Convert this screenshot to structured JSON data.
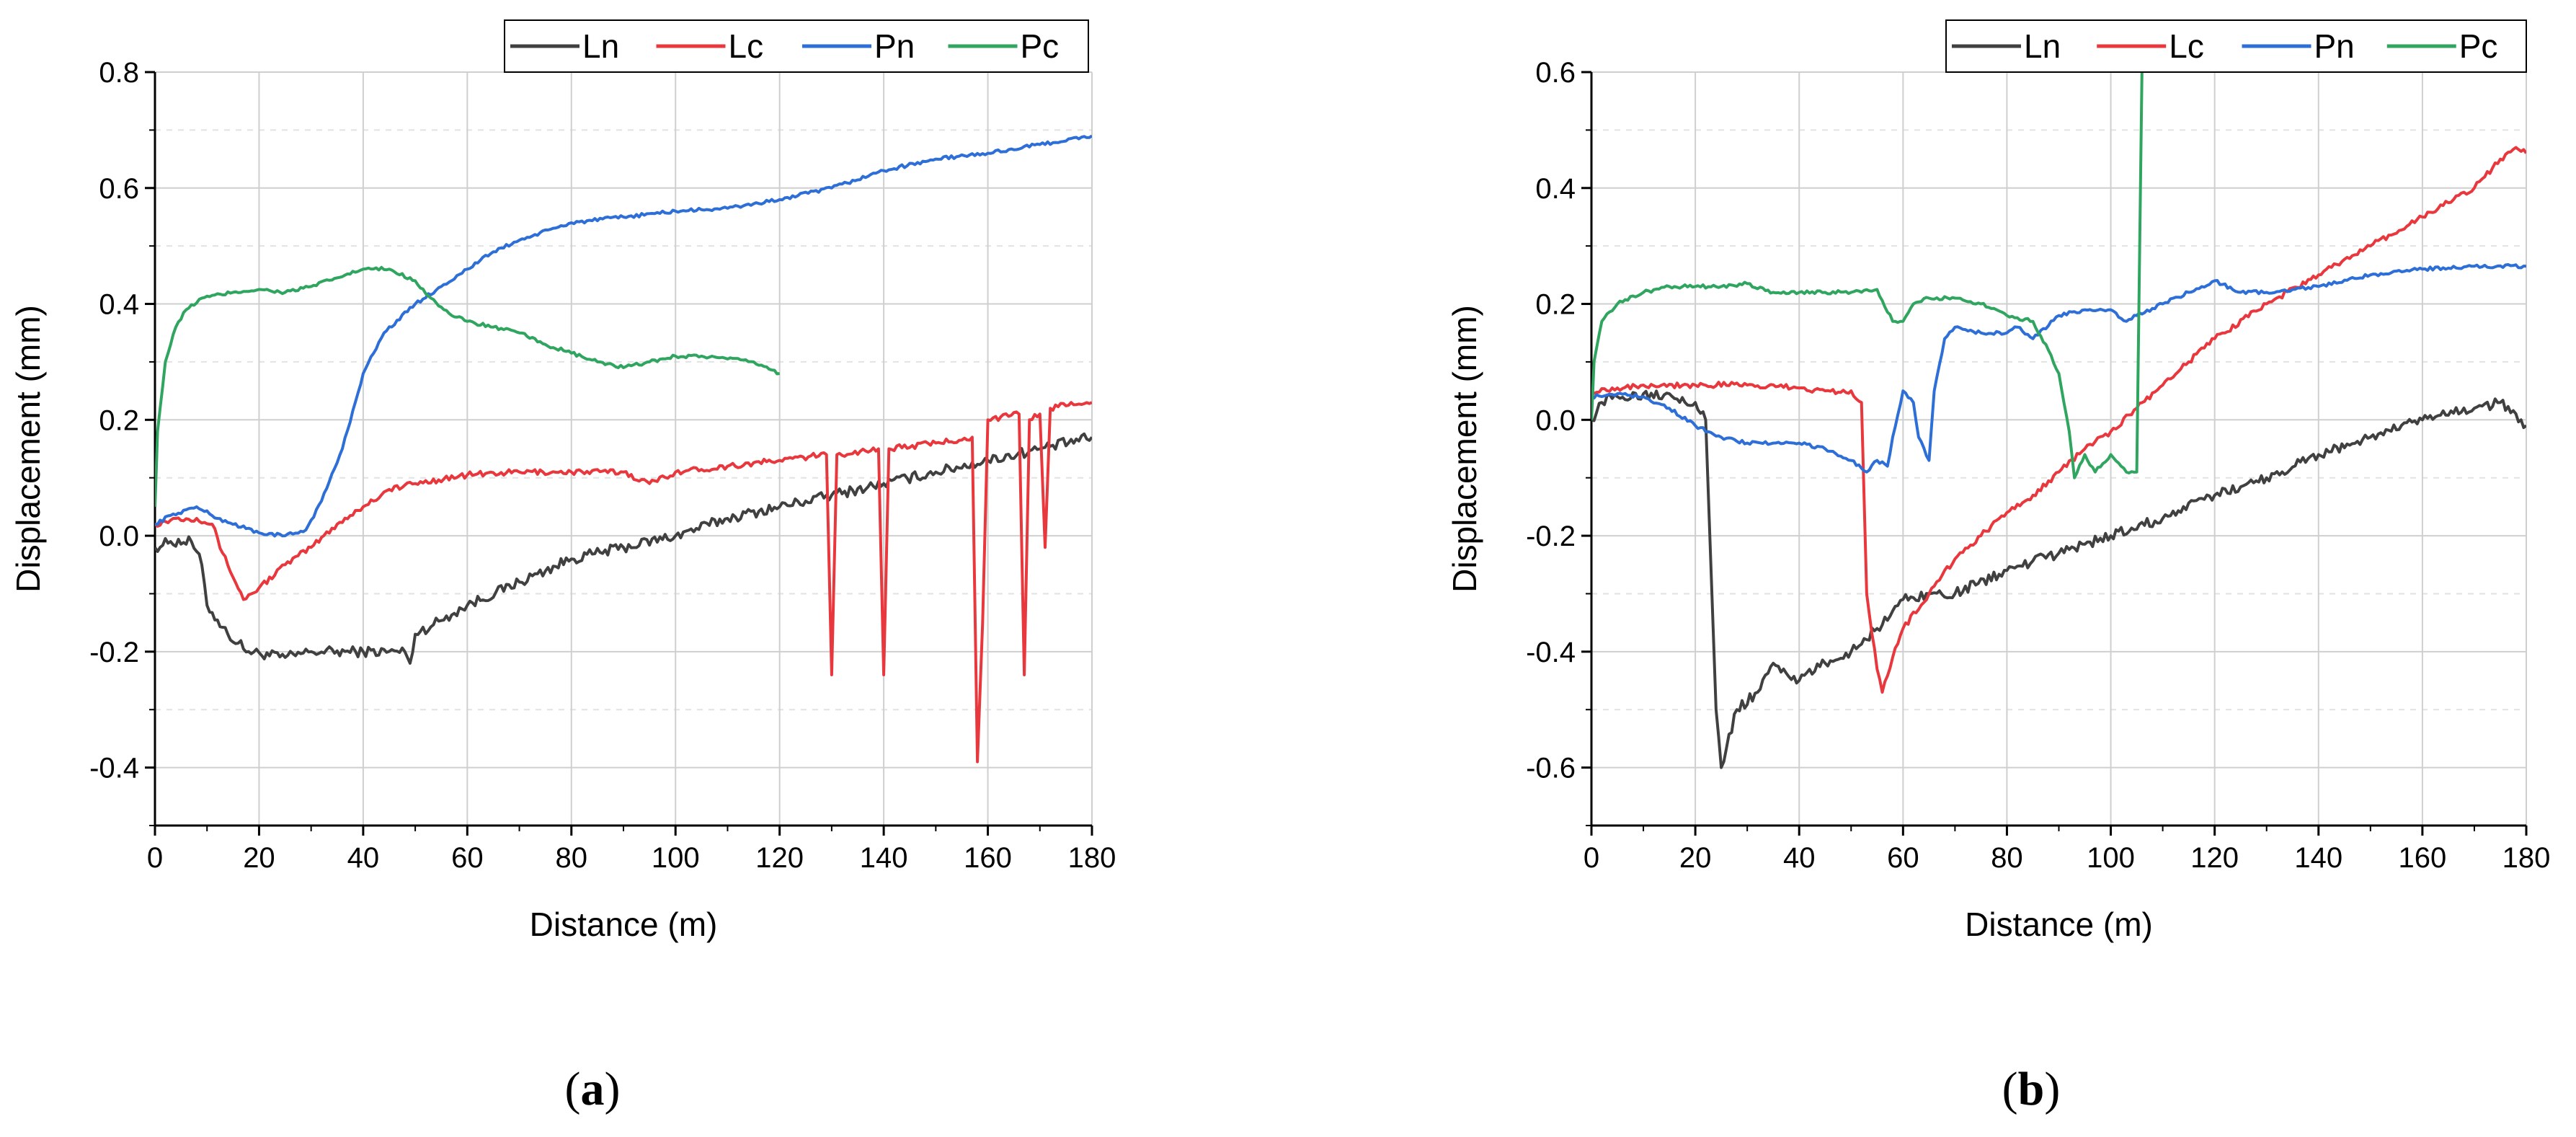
{
  "chart_data": [
    {
      "id": "a",
      "type": "line",
      "panel_label": "(a)",
      "panel_letter": "a",
      "xlabel": "Distance (m)",
      "ylabel": "Displacement (mm)",
      "xlim": [
        0,
        180
      ],
      "ylim": [
        -0.5,
        0.8
      ],
      "xticks": [
        0,
        20,
        40,
        60,
        80,
        100,
        120,
        140,
        160,
        180
      ],
      "yticks": [
        -0.4,
        -0.2,
        0.0,
        0.2,
        0.4,
        0.6,
        0.8
      ],
      "ytick_labels": [
        "-0.4",
        "-0.2",
        "0.0",
        "0.2",
        "0.4",
        "0.6",
        "0.8"
      ],
      "grid": true,
      "legend_position": "top-right",
      "series": [
        {
          "name": "Ln",
          "color": "#404040",
          "points": [
            [
              0,
              -0.02
            ],
            [
              3,
              -0.01
            ],
            [
              7,
              -0.01
            ],
            [
              9,
              -0.05
            ],
            [
              10,
              -0.12
            ],
            [
              14,
              -0.17
            ],
            [
              18,
              -0.2
            ],
            [
              25,
              -0.21
            ],
            [
              30,
              -0.2
            ],
            [
              40,
              -0.2
            ],
            [
              48,
              -0.2
            ],
            [
              49,
              -0.22
            ],
            [
              50,
              -0.17
            ],
            [
              60,
              -0.12
            ],
            [
              70,
              -0.08
            ],
            [
              80,
              -0.04
            ],
            [
              90,
              -0.02
            ],
            [
              100,
              0.0
            ],
            [
              110,
              0.03
            ],
            [
              120,
              0.05
            ],
            [
              130,
              0.07
            ],
            [
              140,
              0.09
            ],
            [
              150,
              0.11
            ],
            [
              160,
              0.13
            ],
            [
              170,
              0.15
            ],
            [
              180,
              0.17
            ]
          ]
        },
        {
          "name": "Lc",
          "color": "#e8383d",
          "points": [
            [
              0,
              0.02
            ],
            [
              4,
              0.03
            ],
            [
              8,
              0.03
            ],
            [
              11,
              0.02
            ],
            [
              13,
              -0.03
            ],
            [
              17,
              -0.11
            ],
            [
              20,
              -0.09
            ],
            [
              25,
              -0.05
            ],
            [
              30,
              -0.02
            ],
            [
              35,
              0.02
            ],
            [
              40,
              0.05
            ],
            [
              45,
              0.08
            ],
            [
              50,
              0.09
            ],
            [
              60,
              0.105
            ],
            [
              70,
              0.11
            ],
            [
              80,
              0.11
            ],
            [
              90,
              0.11
            ],
            [
              95,
              0.09
            ],
            [
              100,
              0.11
            ],
            [
              110,
              0.12
            ],
            [
              120,
              0.13
            ],
            [
              129,
              0.14
            ],
            [
              130,
              -0.24
            ],
            [
              131,
              0.14
            ],
            [
              139,
              0.15
            ],
            [
              140,
              -0.24
            ],
            [
              141,
              0.15
            ],
            [
              150,
              0.16
            ],
            [
              157,
              0.17
            ],
            [
              158,
              -0.39
            ],
            [
              159,
              -0.15
            ],
            [
              160,
              0.2
            ],
            [
              166,
              0.21
            ],
            [
              167,
              -0.24
            ],
            [
              168,
              0.2
            ],
            [
              170,
              0.21
            ],
            [
              171,
              -0.02
            ],
            [
              172,
              0.22
            ],
            [
              176,
              0.23
            ],
            [
              180,
              0.23
            ]
          ]
        },
        {
          "name": "Pn",
          "color": "#2d6fd6",
          "points": [
            [
              0,
              0.02
            ],
            [
              3,
              0.035
            ],
            [
              8,
              0.05
            ],
            [
              12,
              0.03
            ],
            [
              20,
              0.005
            ],
            [
              25,
              0.0
            ],
            [
              29,
              0.01
            ],
            [
              32,
              0.06
            ],
            [
              36,
              0.15
            ],
            [
              40,
              0.28
            ],
            [
              44,
              0.35
            ],
            [
              50,
              0.4
            ],
            [
              55,
              0.43
            ],
            [
              60,
              0.46
            ],
            [
              65,
              0.49
            ],
            [
              70,
              0.51
            ],
            [
              80,
              0.54
            ],
            [
              90,
              0.55
            ],
            [
              100,
              0.56
            ],
            [
              110,
              0.565
            ],
            [
              120,
              0.58
            ],
            [
              130,
              0.6
            ],
            [
              140,
              0.63
            ],
            [
              150,
              0.65
            ],
            [
              160,
              0.66
            ],
            [
              170,
              0.675
            ],
            [
              180,
              0.69
            ]
          ]
        },
        {
          "name": "Pc",
          "color": "#2fa560",
          "points": [
            [
              0,
              0.05
            ],
            [
              0.5,
              0.18
            ],
            [
              2,
              0.3
            ],
            [
              4,
              0.36
            ],
            [
              6,
              0.39
            ],
            [
              9,
              0.41
            ],
            [
              15,
              0.42
            ],
            [
              20,
              0.425
            ],
            [
              25,
              0.42
            ],
            [
              30,
              0.43
            ],
            [
              35,
              0.445
            ],
            [
              40,
              0.46
            ],
            [
              45,
              0.46
            ],
            [
              50,
              0.44
            ],
            [
              53,
              0.41
            ],
            [
              57,
              0.38
            ],
            [
              60,
              0.37
            ],
            [
              65,
              0.36
            ],
            [
              70,
              0.35
            ],
            [
              75,
              0.33
            ],
            [
              80,
              0.315
            ],
            [
              85,
              0.3
            ],
            [
              90,
              0.29
            ],
            [
              95,
              0.3
            ],
            [
              100,
              0.31
            ],
            [
              105,
              0.31
            ],
            [
              110,
              0.305
            ],
            [
              115,
              0.3
            ],
            [
              120,
              0.28
            ]
          ]
        }
      ]
    },
    {
      "id": "b",
      "type": "line",
      "panel_label": "(b)",
      "panel_letter": "b",
      "xlabel": "Distance (m)",
      "ylabel": "Displacement (mm)",
      "xlim": [
        0,
        180
      ],
      "ylim": [
        -0.7,
        0.6
      ],
      "xticks": [
        0,
        20,
        40,
        60,
        80,
        100,
        120,
        140,
        160,
        180
      ],
      "yticks": [
        -0.6,
        -0.4,
        -0.2,
        0.0,
        0.2,
        0.4,
        0.6
      ],
      "ytick_labels": [
        "-0.6",
        "-0.4",
        "-0.2",
        "0.0",
        "0.2",
        "0.4",
        "0.6"
      ],
      "grid": true,
      "legend_position": "top-right",
      "series": [
        {
          "name": "Ln",
          "color": "#404040",
          "points": [
            [
              0,
              0.0
            ],
            [
              2,
              0.03
            ],
            [
              5,
              0.04
            ],
            [
              10,
              0.045
            ],
            [
              15,
              0.045
            ],
            [
              20,
              0.03
            ],
            [
              22,
              0.0
            ],
            [
              23,
              -0.25
            ],
            [
              24,
              -0.5
            ],
            [
              25,
              -0.6
            ],
            [
              28,
              -0.5
            ],
            [
              32,
              -0.47
            ],
            [
              35,
              -0.42
            ],
            [
              40,
              -0.45
            ],
            [
              45,
              -0.42
            ],
            [
              50,
              -0.4
            ],
            [
              55,
              -0.36
            ],
            [
              60,
              -0.31
            ],
            [
              65,
              -0.3
            ],
            [
              70,
              -0.3
            ],
            [
              80,
              -0.26
            ],
            [
              90,
              -0.23
            ],
            [
              100,
              -0.2
            ],
            [
              110,
              -0.17
            ],
            [
              120,
              -0.13
            ],
            [
              130,
              -0.1
            ],
            [
              140,
              -0.06
            ],
            [
              150,
              -0.03
            ],
            [
              160,
              0.0
            ],
            [
              170,
              0.02
            ],
            [
              175,
              0.03
            ],
            [
              180,
              -0.01
            ]
          ]
        },
        {
          "name": "Lc",
          "color": "#e8383d",
          "points": [
            [
              0,
              0.05
            ],
            [
              5,
              0.055
            ],
            [
              10,
              0.06
            ],
            [
              20,
              0.06
            ],
            [
              30,
              0.06
            ],
            [
              40,
              0.055
            ],
            [
              45,
              0.05
            ],
            [
              50,
              0.05
            ],
            [
              52,
              0.03
            ],
            [
              53,
              -0.3
            ],
            [
              55,
              -0.43
            ],
            [
              56,
              -0.47
            ],
            [
              58,
              -0.41
            ],
            [
              60,
              -0.36
            ],
            [
              65,
              -0.3
            ],
            [
              70,
              -0.24
            ],
            [
              75,
              -0.2
            ],
            [
              80,
              -0.16
            ],
            [
              85,
              -0.13
            ],
            [
              90,
              -0.09
            ],
            [
              95,
              -0.05
            ],
            [
              100,
              -0.02
            ],
            [
              105,
              0.02
            ],
            [
              110,
              0.06
            ],
            [
              115,
              0.1
            ],
            [
              120,
              0.14
            ],
            [
              130,
              0.2
            ],
            [
              140,
              0.25
            ],
            [
              150,
              0.3
            ],
            [
              160,
              0.35
            ],
            [
              170,
              0.4
            ],
            [
              175,
              0.45
            ],
            [
              178,
              0.47
            ],
            [
              180,
              0.46
            ]
          ]
        },
        {
          "name": "Pn",
          "color": "#2d6fd6",
          "points": [
            [
              0,
              0.04
            ],
            [
              5,
              0.045
            ],
            [
              10,
              0.04
            ],
            [
              15,
              0.02
            ],
            [
              20,
              -0.01
            ],
            [
              25,
              -0.03
            ],
            [
              30,
              -0.04
            ],
            [
              40,
              -0.04
            ],
            [
              45,
              -0.05
            ],
            [
              50,
              -0.07
            ],
            [
              53,
              -0.09
            ],
            [
              55,
              -0.07
            ],
            [
              57,
              -0.08
            ],
            [
              58,
              -0.03
            ],
            [
              60,
              0.05
            ],
            [
              62,
              0.03
            ],
            [
              63,
              -0.03
            ],
            [
              65,
              -0.07
            ],
            [
              66,
              0.05
            ],
            [
              68,
              0.14
            ],
            [
              70,
              0.16
            ],
            [
              75,
              0.15
            ],
            [
              80,
              0.15
            ],
            [
              82,
              0.16
            ],
            [
              85,
              0.14
            ],
            [
              90,
              0.18
            ],
            [
              95,
              0.19
            ],
            [
              100,
              0.19
            ],
            [
              103,
              0.17
            ],
            [
              105,
              0.18
            ],
            [
              110,
              0.2
            ],
            [
              115,
              0.22
            ],
            [
              120,
              0.24
            ],
            [
              125,
              0.22
            ],
            [
              130,
              0.22
            ],
            [
              140,
              0.23
            ],
            [
              150,
              0.25
            ],
            [
              160,
              0.26
            ],
            [
              170,
              0.265
            ],
            [
              180,
              0.265
            ]
          ]
        },
        {
          "name": "Pc",
          "color": "#2fa560",
          "points": [
            [
              0,
              0.0
            ],
            [
              0.5,
              0.1
            ],
            [
              2,
              0.17
            ],
            [
              5,
              0.2
            ],
            [
              10,
              0.22
            ],
            [
              15,
              0.23
            ],
            [
              20,
              0.23
            ],
            [
              25,
              0.23
            ],
            [
              30,
              0.235
            ],
            [
              35,
              0.22
            ],
            [
              40,
              0.22
            ],
            [
              45,
              0.22
            ],
            [
              50,
              0.22
            ],
            [
              55,
              0.225
            ],
            [
              58,
              0.17
            ],
            [
              60,
              0.17
            ],
            [
              62,
              0.2
            ],
            [
              65,
              0.21
            ],
            [
              70,
              0.21
            ],
            [
              75,
              0.2
            ],
            [
              78,
              0.19
            ],
            [
              80,
              0.18
            ],
            [
              85,
              0.17
            ],
            [
              88,
              0.12
            ],
            [
              90,
              0.08
            ],
            [
              92,
              -0.02
            ],
            [
              93,
              -0.1
            ],
            [
              95,
              -0.06
            ],
            [
              97,
              -0.09
            ],
            [
              100,
              -0.06
            ],
            [
              103,
              -0.09
            ],
            [
              105,
              -0.09
            ],
            [
              106,
              0.6
            ]
          ]
        }
      ]
    }
  ]
}
